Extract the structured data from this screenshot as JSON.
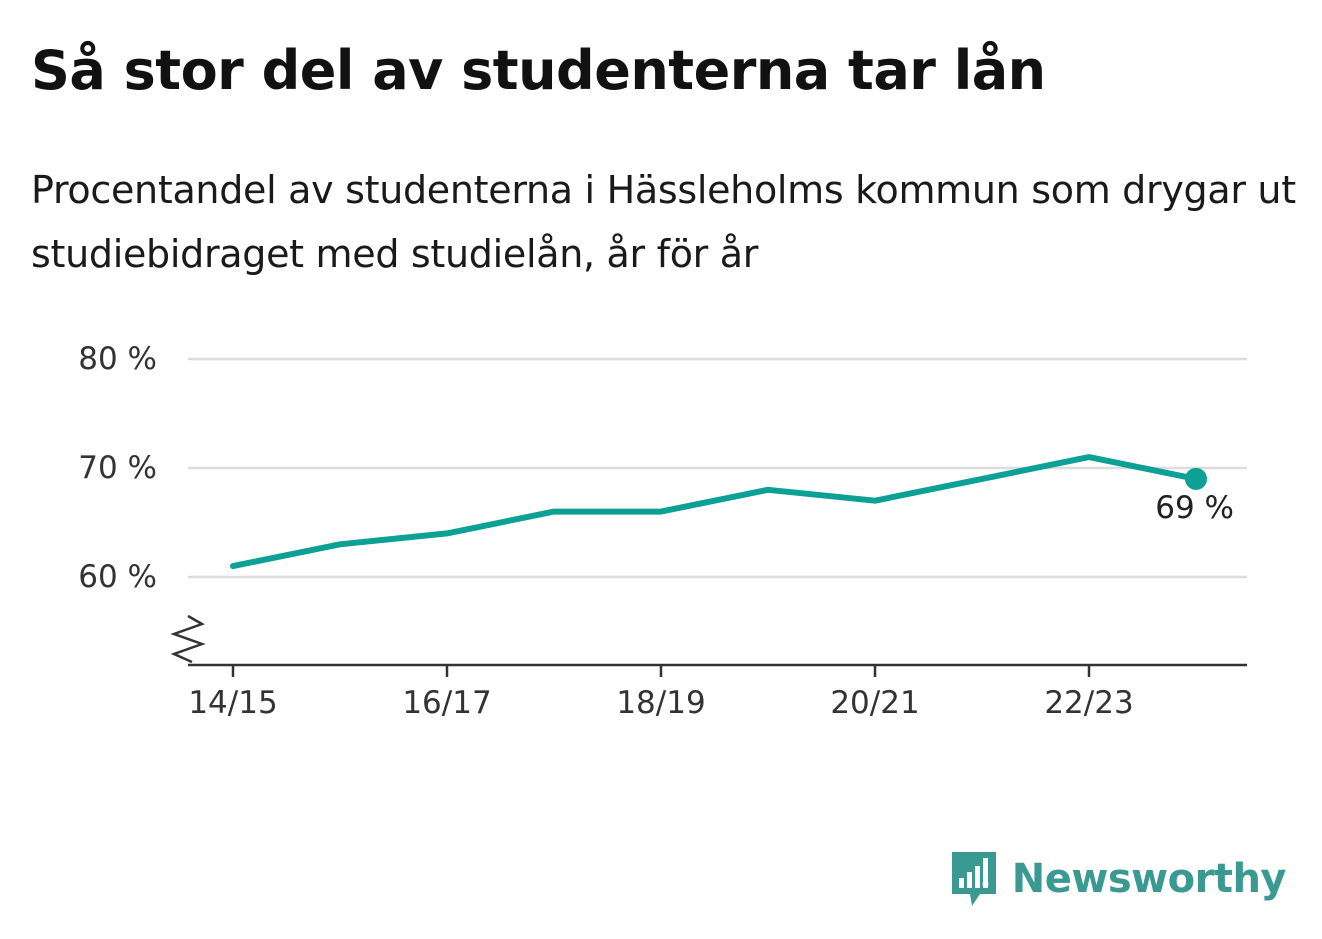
{
  "title": "Så stor del av studenterna tar lån",
  "subtitle": "Procentandel av studenterna i Hässleholms kommun som drygar ut studiebidraget med studielån, år för år",
  "brand": {
    "name": "Newsworthy",
    "color": "#3a9a92",
    "icon": "bar-chart-speech-bubble-icon"
  },
  "colors": {
    "line": "#0da195",
    "grid": "#dddddd",
    "axis": "#333333"
  },
  "chart_data": {
    "type": "line",
    "x": [
      "14/15",
      "15/16",
      "16/17",
      "17/18",
      "18/19",
      "19/20",
      "20/21",
      "21/22",
      "22/23",
      "23/24"
    ],
    "xticks": [
      "14/15",
      "16/17",
      "18/19",
      "20/21",
      "22/23"
    ],
    "series": [
      {
        "values": [
          61,
          63,
          64,
          66,
          66,
          68,
          67,
          69,
          71,
          69
        ]
      }
    ],
    "yticks": [
      {
        "value": 60,
        "label": "60 %"
      },
      {
        "value": 70,
        "label": "70 %"
      },
      {
        "value": 80,
        "label": "80 %"
      }
    ],
    "ylim": [
      52,
      80
    ],
    "y_axis_break": true,
    "grid": true,
    "annotations": [
      {
        "x": "23/24",
        "value": 69,
        "label": "69 %"
      }
    ],
    "title": "",
    "xlabel": "",
    "ylabel": ""
  }
}
